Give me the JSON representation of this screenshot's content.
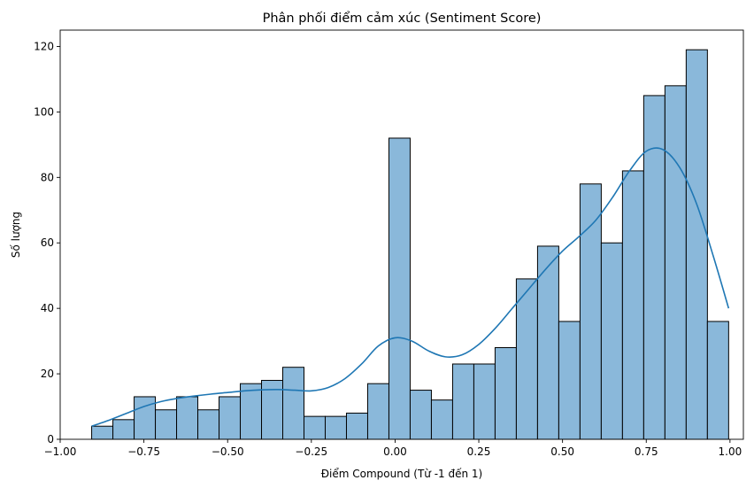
{
  "chart_data": {
    "type": "bar",
    "title": "Phân phối điểm cảm xúc (Sentiment Score)",
    "xlabel": "Điểm Compound (Từ -1 đến 1)",
    "ylabel": "Số lượng",
    "xlim": [
      -1.0,
      1.04
    ],
    "ylim": [
      0,
      125
    ],
    "xticks": [
      -1.0,
      -0.75,
      -0.5,
      -0.25,
      0.0,
      0.25,
      0.5,
      0.75,
      1.0
    ],
    "xtick_labels": [
      "−1.00",
      "−0.75",
      "−0.50",
      "−0.25",
      "0.00",
      "0.25",
      "0.50",
      "0.75",
      "1.00"
    ],
    "yticks": [
      0,
      20,
      40,
      60,
      80,
      100,
      120
    ],
    "ytick_labels": [
      "0",
      "20",
      "40",
      "60",
      "80",
      "100",
      "120"
    ],
    "bin_start": -0.906,
    "bin_width": 0.0634,
    "values": [
      4,
      6,
      13,
      9,
      13,
      9,
      13,
      17,
      18,
      22,
      7,
      7,
      8,
      17,
      92,
      15,
      12,
      23,
      23,
      28,
      49,
      59,
      36,
      78,
      60,
      82,
      105,
      108,
      119,
      36
    ],
    "bar_color": "#8ab8da",
    "bar_edge_color": "#000000",
    "kde": {
      "color": "#1f77b4",
      "x": [
        -0.906,
        -0.85,
        -0.8,
        -0.75,
        -0.7,
        -0.65,
        -0.6,
        -0.55,
        -0.5,
        -0.45,
        -0.4,
        -0.35,
        -0.3,
        -0.25,
        -0.2,
        -0.15,
        -0.1,
        -0.05,
        0.0,
        0.05,
        0.1,
        0.15,
        0.2,
        0.25,
        0.3,
        0.35,
        0.4,
        0.45,
        0.5,
        0.55,
        0.6,
        0.65,
        0.7,
        0.75,
        0.8,
        0.85,
        0.9,
        0.95,
        0.996
      ],
      "y": [
        4,
        6,
        8,
        10,
        11.5,
        12.5,
        13.2,
        13.8,
        14.3,
        14.8,
        15.1,
        15.2,
        15.0,
        14.8,
        15.8,
        18.5,
        23,
        28.5,
        31,
        30,
        27,
        25.2,
        25.8,
        29,
        34,
        40,
        46,
        52,
        57.5,
        62,
        67,
        74,
        82,
        88,
        88.5,
        83,
        72,
        56,
        40
      ]
    }
  }
}
